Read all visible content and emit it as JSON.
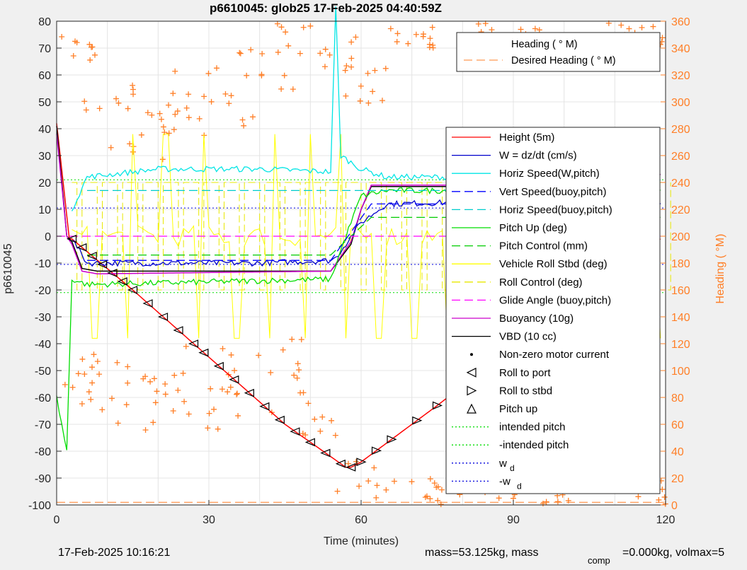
{
  "chart_data": {
    "type": "line",
    "title": "p6610045: glob25 17-Feb-2025 04:40:59Z",
    "xlabel": "Time (minutes)",
    "ylabel": "p6610045",
    "y2label": "Heading (  °M)",
    "xlim": [
      0,
      120
    ],
    "ylim": [
      -100,
      80
    ],
    "y2lim": [
      0,
      360
    ],
    "xticks": [
      "0",
      "30",
      "60",
      "90",
      "120"
    ],
    "yticks": [
      "80",
      "70",
      "60",
      "50",
      "40",
      "30",
      "20",
      "10",
      "0",
      "-10",
      "-20",
      "-30",
      "-40",
      "-50",
      "-60",
      "-70",
      "-80",
      "-90",
      "-100"
    ],
    "y2ticks": [
      "360",
      "340",
      "320",
      "300",
      "280",
      "260",
      "240",
      "220",
      "200",
      "180",
      "160",
      "140",
      "120",
      "100",
      "80",
      "60",
      "40",
      "20",
      "0"
    ],
    "grid": true,
    "legend_heading": [
      "Heading (  ° M)",
      "Desired Heading (    ° M)"
    ],
    "legend_main": [
      "Height (5m)",
      "W = dz/dt (cm/s)",
      "Horiz Speed(W,pitch)",
      "Vert Speed(buoy,pitch)",
      "Horiz Speed(buoy,pitch)",
      "Pitch Up (deg)",
      "Pitch Control (mm)",
      "Vehicle Roll Stbd (deg)",
      "Roll Control (deg)",
      "Glide Angle (buoy,pitch)",
      "Buoyancy (10g)",
      "VBD (10 cc)",
      "Non-zero motor current",
      "Roll to port",
      "Roll to stbd",
      "Pitch up",
      "intended pitch",
      "-intended pitch",
      "w",
      "-w"
    ],
    "legend_sub": "d",
    "colors": {
      "height": "#ff0000",
      "w": "#0000cc",
      "horiz_w": "#00e5e5",
      "vert_buoy": "#0000ff",
      "horiz_buoy": "#00cccc",
      "pitch": "#00dd00",
      "pitch_ctl": "#00cc00",
      "roll": "#ffff00",
      "roll_ctl": "#e8e800",
      "glide": "#ff00ff",
      "buoy": "#cc00cc",
      "vbd": "#000000",
      "heading": "#ff7f27"
    },
    "series": [
      {
        "name": "Height (5m)",
        "x": [
          0,
          2.5,
          3,
          15,
          30,
          45,
          57,
          58,
          60,
          75,
          90,
          105,
          115,
          119
        ],
        "values": [
          42,
          -1,
          -1,
          -20,
          -45,
          -70,
          -86,
          -86,
          -84,
          -63,
          -41,
          -19,
          -6,
          -1
        ]
      },
      {
        "name": "VBD (10 cc)",
        "x": [
          0,
          2,
          3,
          5,
          8,
          54,
          58,
          60,
          62,
          110,
          111,
          116,
          119
        ],
        "values": [
          41,
          0,
          -2,
          -12,
          -13,
          -13,
          -3,
          10,
          18.5,
          18.5,
          21,
          22,
          23
        ]
      },
      {
        "name": "Buoyancy (10g)",
        "x": [
          0,
          2,
          3,
          5,
          8,
          54,
          58,
          60,
          62,
          110,
          116,
          119
        ],
        "values": [
          38,
          0,
          -3,
          -13,
          -14,
          -13,
          -2,
          10,
          19,
          19,
          22,
          23
        ]
      },
      {
        "name": "W = dz/dt (cm/s)",
        "x": [
          3,
          6,
          20,
          40,
          54,
          55,
          60,
          65,
          90,
          119
        ],
        "values": [
          -1,
          -10,
          -10,
          -10,
          -9,
          -8,
          5,
          12,
          13,
          12
        ]
      },
      {
        "name": "Horiz Speed(W,pitch)",
        "x": [
          3,
          6,
          20,
          40,
          54,
          55,
          56,
          60,
          65,
          90,
          119
        ],
        "values": [
          10,
          22,
          25,
          25,
          24,
          85,
          30,
          25,
          22,
          22,
          21
        ]
      },
      {
        "name": "Pitch Up (deg)",
        "x": [
          0,
          2,
          3,
          6,
          30,
          54,
          57,
          60,
          65,
          90,
          119
        ],
        "values": [
          -60,
          -80,
          -16,
          -18,
          -17,
          -16,
          0,
          15,
          17,
          17,
          17
        ]
      },
      {
        "name": "Pitch Control (mm)",
        "x": [
          6,
          54,
          62,
          119
        ],
        "values": [
          -7,
          -7,
          7,
          7
        ]
      },
      {
        "name": "Horiz Speed(buoy,pitch)",
        "x": [
          6,
          54,
          62,
          119
        ],
        "values": [
          17,
          17,
          17,
          17
        ]
      },
      {
        "name": "Vert Speed(buoy,pitch)",
        "x": [
          6,
          54,
          62,
          119
        ],
        "values": [
          -9,
          -9,
          12,
          12
        ]
      },
      {
        "name": "Glide Angle (buoy,pitch)",
        "x": [
          0,
          119
        ],
        "values": [
          0,
          0
        ]
      }
    ],
    "intended_pitch": 21,
    "w_d": 10.5
  },
  "footer": {
    "date": "17-Feb-2025 10:16:21",
    "mass_a": "mass=53.125kg, mass",
    "comp": "comp",
    "mass_b": "=0.000kg, volmax=5"
  }
}
